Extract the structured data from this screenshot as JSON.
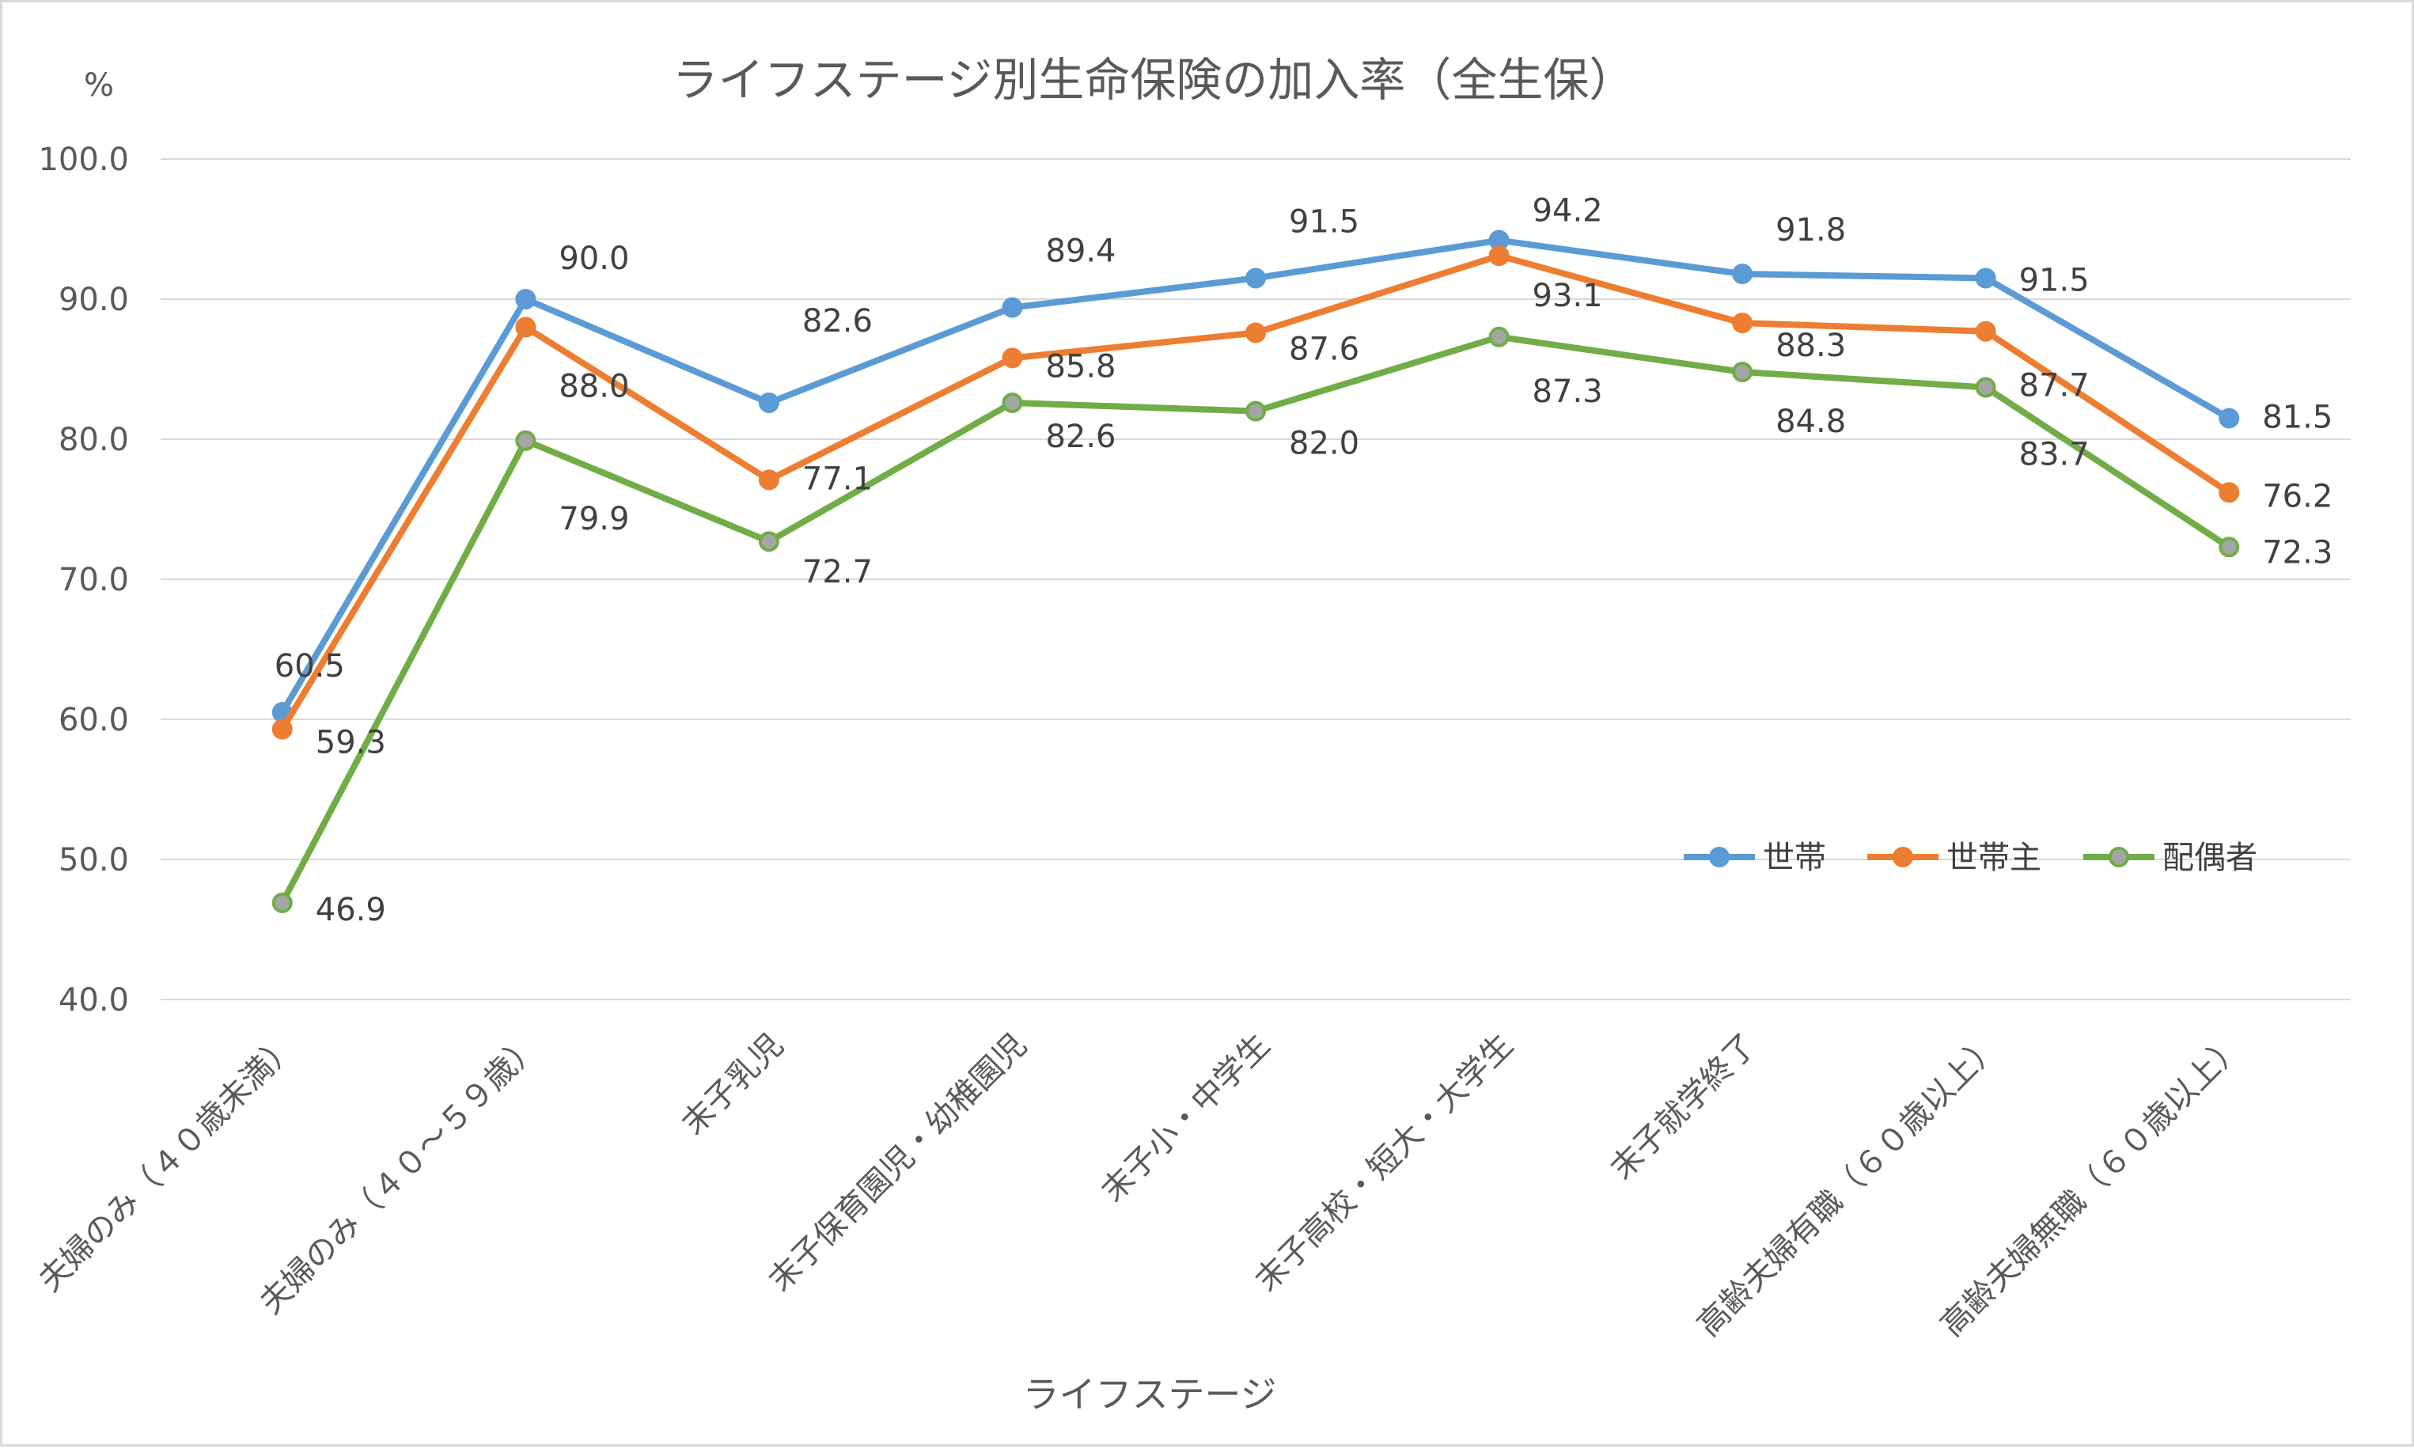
{
  "chart_data": {
    "type": "line",
    "title": "ライフステージ別生命保険の加入率（全生保）",
    "ylabel": "%",
    "xlabel": "ライフステージ",
    "ylim": [
      40,
      100
    ],
    "yticks": [
      "40.0",
      "50.0",
      "60.0",
      "70.0",
      "80.0",
      "90.0",
      "100.0"
    ],
    "grid": true,
    "legend_position": "bottom-right",
    "categories": [
      "夫婦のみ（４０歳未満）",
      "夫婦のみ（４０～５９歳）",
      "末子乳児",
      "末子保育園児・幼稚園児",
      "末子小・中学生",
      "末子高校・短大・大学生",
      "末子就学終了",
      "高齢夫婦有職（６０歳以上）",
      "高齢夫婦無職（６０歳以上）"
    ],
    "series": [
      {
        "name": "世帯",
        "color": "#5b9bd5",
        "values": [
          60.5,
          90.0,
          82.6,
          89.4,
          91.5,
          94.2,
          91.8,
          91.5,
          81.5
        ],
        "labels": [
          "60.5",
          "90.0",
          "82.6",
          "89.4",
          "91.5",
          "94.2",
          "91.8",
          "91.5",
          "81.5"
        ]
      },
      {
        "name": "世帯主",
        "color": "#ed7d31",
        "values": [
          59.3,
          88.0,
          77.1,
          85.8,
          87.6,
          93.1,
          88.3,
          87.7,
          76.2
        ],
        "labels": [
          "59.3",
          "88.0",
          "77.1",
          "85.8",
          "87.6",
          "93.1",
          "88.3",
          "87.7",
          "76.2"
        ]
      },
      {
        "name": "配偶者",
        "color": "#70ad47",
        "marker_color": "#a5a5a5",
        "values": [
          46.9,
          79.9,
          72.7,
          82.6,
          82.0,
          87.3,
          84.8,
          83.7,
          72.3
        ],
        "labels": [
          "46.9",
          "79.9",
          "72.7",
          "82.6",
          "82.0",
          "87.3",
          "84.8",
          "83.7",
          "72.3"
        ]
      }
    ]
  }
}
